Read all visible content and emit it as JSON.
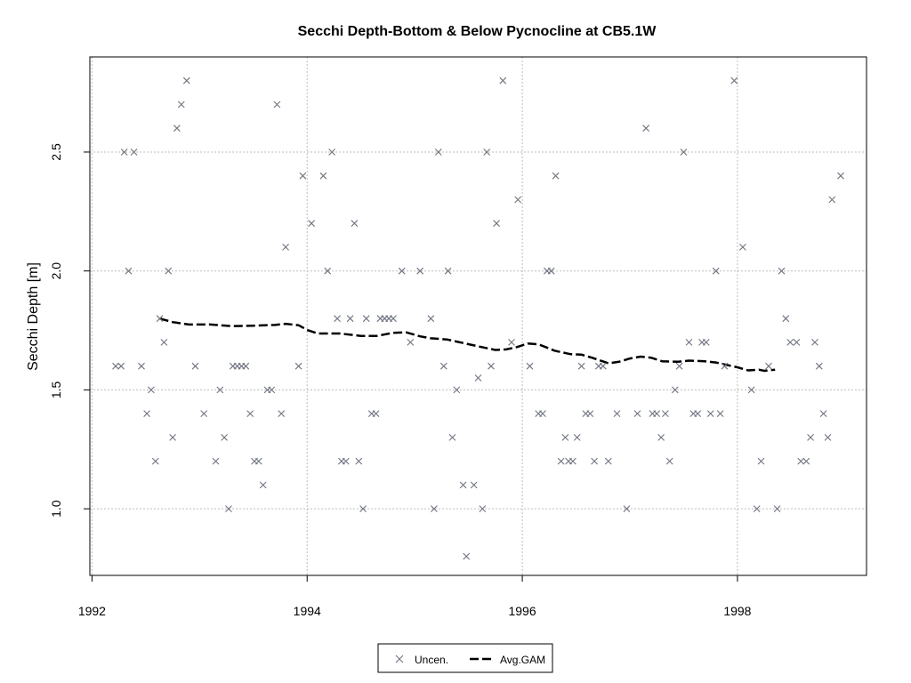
{
  "chart_data": {
    "type": "scatter",
    "title": "Secchi Depth-Bottom & Below Pycnocline at CB5.1W",
    "xlabel": "",
    "ylabel": "Secchi Depth [m]",
    "xlim": [
      1991.98,
      1999.2
    ],
    "ylim": [
      0.72,
      2.9
    ],
    "x_ticks": [
      1992,
      1994,
      1996,
      1998
    ],
    "y_ticks": [
      1.0,
      1.5,
      2.0,
      2.5
    ],
    "y_tick_labels": [
      "1.0",
      "1.5",
      "2.0",
      "2.5"
    ],
    "grid": true,
    "legend_position": "bottom-center",
    "series": [
      {
        "name": "Uncen.",
        "kind": "points",
        "marker": "x",
        "color": "#6f7480",
        "points": [
          [
            1992.22,
            1.6
          ],
          [
            1992.27,
            1.6
          ],
          [
            1992.3,
            2.5
          ],
          [
            1992.34,
            2.0
          ],
          [
            1992.39,
            2.5
          ],
          [
            1992.46,
            1.6
          ],
          [
            1992.51,
            1.4
          ],
          [
            1992.55,
            1.5
          ],
          [
            1992.59,
            1.2
          ],
          [
            1992.63,
            1.8
          ],
          [
            1992.67,
            1.7
          ],
          [
            1992.71,
            2.0
          ],
          [
            1992.75,
            1.3
          ],
          [
            1992.79,
            2.6
          ],
          [
            1992.83,
            2.7
          ],
          [
            1992.88,
            2.8
          ],
          [
            1992.96,
            1.6
          ],
          [
            1993.04,
            1.4
          ],
          [
            1993.15,
            1.2
          ],
          [
            1993.19,
            1.5
          ],
          [
            1993.23,
            1.3
          ],
          [
            1993.27,
            1.0
          ],
          [
            1993.31,
            1.6
          ],
          [
            1993.35,
            1.6
          ],
          [
            1993.39,
            1.6
          ],
          [
            1993.43,
            1.6
          ],
          [
            1993.47,
            1.4
          ],
          [
            1993.51,
            1.2
          ],
          [
            1993.55,
            1.2
          ],
          [
            1993.59,
            1.1
          ],
          [
            1993.63,
            1.5
          ],
          [
            1993.67,
            1.5
          ],
          [
            1993.72,
            2.7
          ],
          [
            1993.76,
            1.4
          ],
          [
            1993.8,
            2.1
          ],
          [
            1993.92,
            1.6
          ],
          [
            1993.96,
            2.4
          ],
          [
            1994.04,
            2.2
          ],
          [
            1994.15,
            2.4
          ],
          [
            1994.19,
            2.0
          ],
          [
            1994.23,
            2.5
          ],
          [
            1994.28,
            1.8
          ],
          [
            1994.32,
            1.2
          ],
          [
            1994.36,
            1.2
          ],
          [
            1994.4,
            1.8
          ],
          [
            1994.44,
            2.2
          ],
          [
            1994.48,
            1.2
          ],
          [
            1994.52,
            1.0
          ],
          [
            1994.55,
            1.8
          ],
          [
            1994.6,
            1.4
          ],
          [
            1994.64,
            1.4
          ],
          [
            1994.68,
            1.8
          ],
          [
            1994.72,
            1.8
          ],
          [
            1994.76,
            1.8
          ],
          [
            1994.8,
            1.8
          ],
          [
            1994.88,
            2.0
          ],
          [
            1994.96,
            1.7
          ],
          [
            1995.05,
            2.0
          ],
          [
            1995.15,
            1.8
          ],
          [
            1995.18,
            1.0
          ],
          [
            1995.22,
            2.5
          ],
          [
            1995.27,
            1.6
          ],
          [
            1995.31,
            2.0
          ],
          [
            1995.35,
            1.3
          ],
          [
            1995.39,
            1.5
          ],
          [
            1995.45,
            1.1
          ],
          [
            1995.48,
            0.8
          ],
          [
            1995.55,
            1.1
          ],
          [
            1995.59,
            1.55
          ],
          [
            1995.63,
            1.0
          ],
          [
            1995.67,
            2.5
          ],
          [
            1995.71,
            1.6
          ],
          [
            1995.76,
            2.2
          ],
          [
            1995.82,
            2.8
          ],
          [
            1995.9,
            1.7
          ],
          [
            1995.96,
            2.3
          ],
          [
            1996.07,
            1.6
          ],
          [
            1996.15,
            1.4
          ],
          [
            1996.19,
            1.4
          ],
          [
            1996.23,
            2.0
          ],
          [
            1996.27,
            2.0
          ],
          [
            1996.31,
            2.4
          ],
          [
            1996.36,
            1.2
          ],
          [
            1996.4,
            1.3
          ],
          [
            1996.43,
            1.2
          ],
          [
            1996.47,
            1.2
          ],
          [
            1996.51,
            1.3
          ],
          [
            1996.55,
            1.6
          ],
          [
            1996.59,
            1.4
          ],
          [
            1996.63,
            1.4
          ],
          [
            1996.67,
            1.2
          ],
          [
            1996.71,
            1.6
          ],
          [
            1996.75,
            1.6
          ],
          [
            1996.8,
            1.2
          ],
          [
            1996.88,
            1.4
          ],
          [
            1996.97,
            1.0
          ],
          [
            1997.07,
            1.4
          ],
          [
            1997.15,
            2.6
          ],
          [
            1997.21,
            1.4
          ],
          [
            1997.25,
            1.4
          ],
          [
            1997.29,
            1.3
          ],
          [
            1997.33,
            1.4
          ],
          [
            1997.37,
            1.2
          ],
          [
            1997.42,
            1.5
          ],
          [
            1997.46,
            1.6
          ],
          [
            1997.5,
            2.5
          ],
          [
            1997.55,
            1.7
          ],
          [
            1997.59,
            1.4
          ],
          [
            1997.63,
            1.4
          ],
          [
            1997.67,
            1.7
          ],
          [
            1997.71,
            1.7
          ],
          [
            1997.75,
            1.4
          ],
          [
            1997.8,
            2.0
          ],
          [
            1997.84,
            1.4
          ],
          [
            1997.88,
            1.6
          ],
          [
            1997.97,
            2.8
          ],
          [
            1998.05,
            2.1
          ],
          [
            1998.13,
            1.5
          ],
          [
            1998.18,
            1.0
          ],
          [
            1998.22,
            1.2
          ],
          [
            1998.29,
            1.6
          ],
          [
            1998.37,
            1.0
          ],
          [
            1998.41,
            2.0
          ],
          [
            1998.45,
            1.8
          ],
          [
            1998.49,
            1.7
          ],
          [
            1998.55,
            1.7
          ],
          [
            1998.59,
            1.2
          ],
          [
            1998.64,
            1.2
          ],
          [
            1998.68,
            1.3
          ],
          [
            1998.72,
            1.7
          ],
          [
            1998.76,
            1.6
          ],
          [
            1998.8,
            1.4
          ],
          [
            1998.84,
            1.3
          ],
          [
            1998.88,
            2.3
          ],
          [
            1998.96,
            2.4
          ]
        ]
      },
      {
        "name": "Avg.GAM",
        "kind": "line",
        "style": "dashed",
        "color": "#000000",
        "points": [
          [
            1992.63,
            1.8
          ],
          [
            1992.75,
            1.785
          ],
          [
            1992.9,
            1.775
          ],
          [
            1993.1,
            1.775
          ],
          [
            1993.3,
            1.768
          ],
          [
            1993.5,
            1.77
          ],
          [
            1993.7,
            1.773
          ],
          [
            1993.8,
            1.778
          ],
          [
            1993.92,
            1.772
          ],
          [
            1994.0,
            1.752
          ],
          [
            1994.1,
            1.737
          ],
          [
            1994.3,
            1.737
          ],
          [
            1994.5,
            1.727
          ],
          [
            1994.65,
            1.727
          ],
          [
            1994.8,
            1.74
          ],
          [
            1994.92,
            1.742
          ],
          [
            1995.05,
            1.725
          ],
          [
            1995.15,
            1.717
          ],
          [
            1995.3,
            1.712
          ],
          [
            1995.45,
            1.697
          ],
          [
            1995.6,
            1.682
          ],
          [
            1995.75,
            1.668
          ],
          [
            1995.85,
            1.67
          ],
          [
            1995.95,
            1.68
          ],
          [
            1996.05,
            1.695
          ],
          [
            1996.15,
            1.692
          ],
          [
            1996.3,
            1.665
          ],
          [
            1996.45,
            1.65
          ],
          [
            1996.55,
            1.648
          ],
          [
            1996.65,
            1.635
          ],
          [
            1996.8,
            1.612
          ],
          [
            1996.9,
            1.618
          ],
          [
            1997.0,
            1.632
          ],
          [
            1997.1,
            1.64
          ],
          [
            1997.2,
            1.635
          ],
          [
            1997.3,
            1.62
          ],
          [
            1997.45,
            1.618
          ],
          [
            1997.55,
            1.623
          ],
          [
            1997.7,
            1.62
          ],
          [
            1997.8,
            1.615
          ],
          [
            1997.9,
            1.605
          ],
          [
            1998.0,
            1.595
          ],
          [
            1998.1,
            1.582
          ],
          [
            1998.2,
            1.585
          ],
          [
            1998.25,
            1.58
          ],
          [
            1998.35,
            1.585
          ]
        ]
      }
    ]
  }
}
